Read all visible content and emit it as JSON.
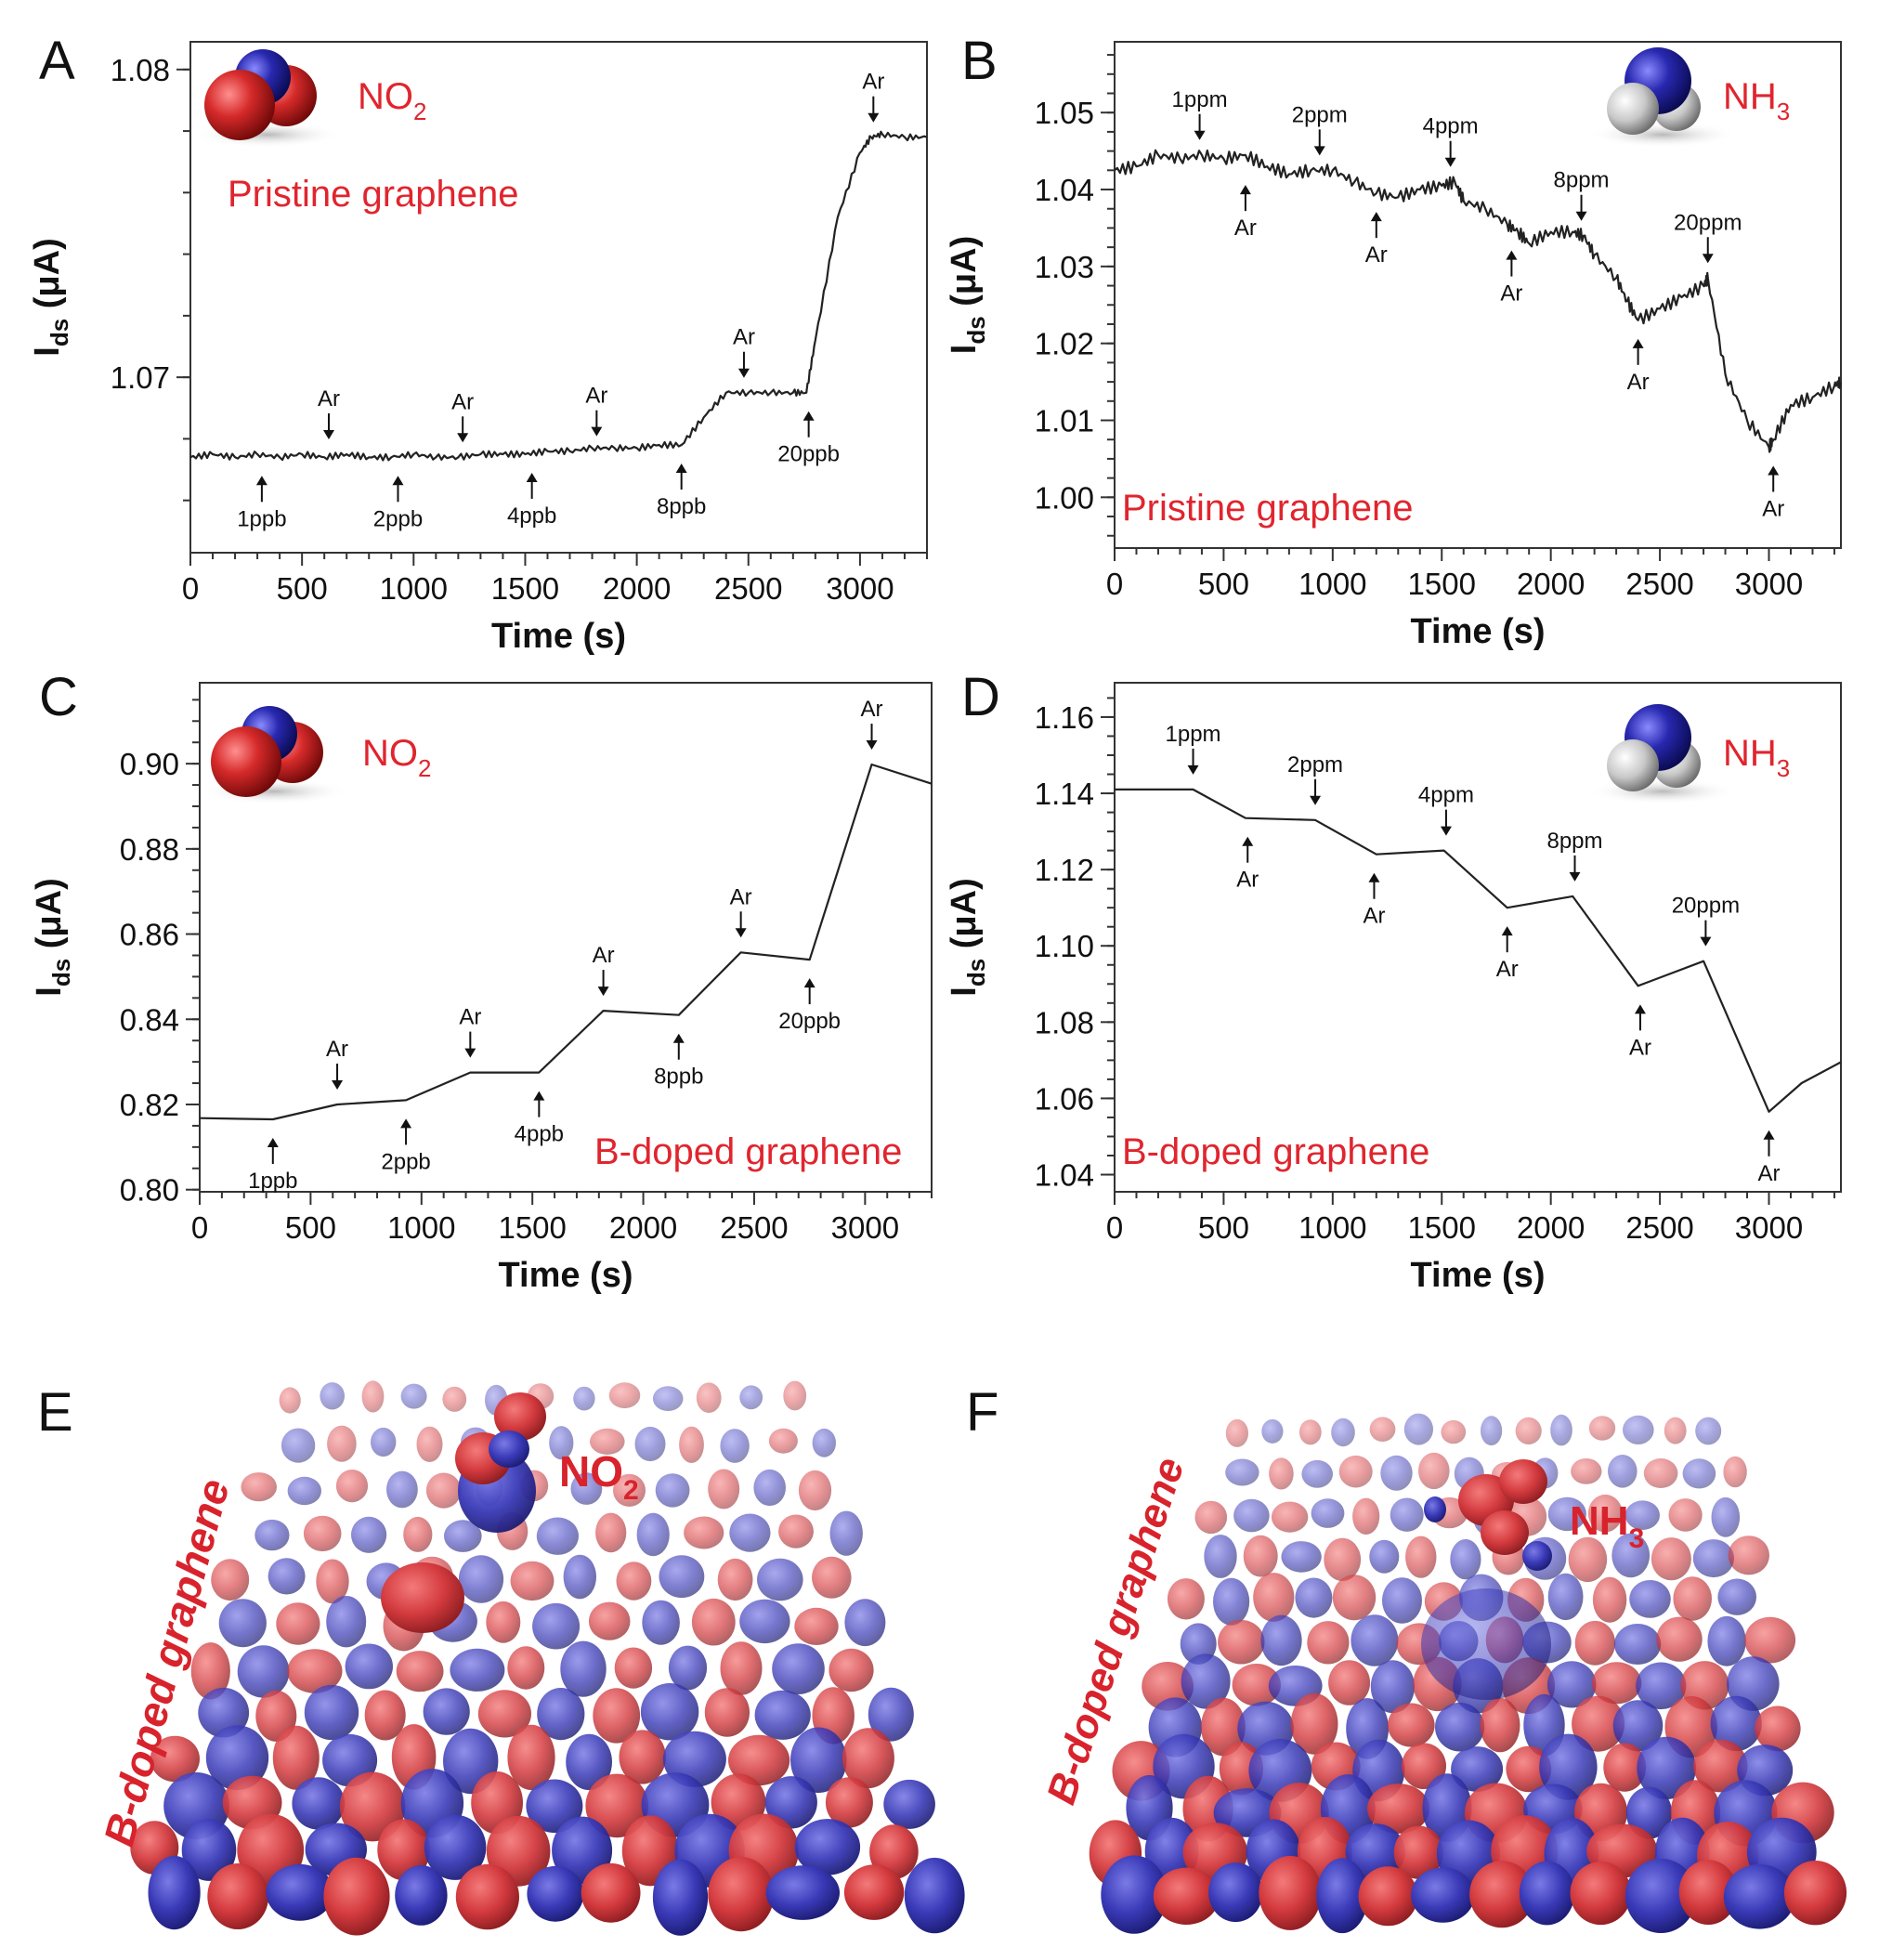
{
  "colors": {
    "trace": "#222222",
    "label_red": "#e0252e",
    "iso_red": "#d9373c",
    "iso_blue": "#3c3cb4"
  },
  "chart_data": [
    {
      "id": "A",
      "type": "line",
      "letter": "A",
      "xlabel": "Time (s)",
      "ylabel_main": "I",
      "ylabel_sub": "ds",
      "ylabel_unit": " (μA)",
      "xlim": [
        0,
        3300
      ],
      "ylim": [
        1.0643,
        1.0809
      ],
      "xticks": [
        0,
        500,
        1000,
        1500,
        2000,
        2500,
        3000
      ],
      "yticks": [
        1.07,
        1.08
      ],
      "ytick_labels": [
        "1.07",
        "1.08"
      ],
      "molecule": "NO2",
      "molecule_label": "NO",
      "molecule_sub": "2",
      "material_label": "Pristine graphene",
      "material_pos": "top-left",
      "series": [
        {
          "x": [
            0,
            100,
            200,
            300,
            400,
            500,
            600,
            700,
            800,
            900,
            1000,
            1100,
            1200,
            1300,
            1400,
            1500,
            1600,
            1700,
            1800,
            1900,
            2000,
            2100,
            2200,
            2300,
            2400,
            2500,
            2600,
            2700,
            2760,
            2800,
            2900,
            3000,
            3050,
            3100,
            3200,
            3300
          ],
          "y": [
            1.0674,
            1.0675,
            1.0674,
            1.0675,
            1.0674,
            1.0675,
            1.0674,
            1.0675,
            1.0674,
            1.0674,
            1.0675,
            1.0674,
            1.0674,
            1.0675,
            1.0675,
            1.0675,
            1.0676,
            1.0676,
            1.0677,
            1.0677,
            1.0677,
            1.0678,
            1.0678,
            1.0687,
            1.0695,
            1.0695,
            1.0695,
            1.0695,
            1.0695,
            1.0712,
            1.0752,
            1.0773,
            1.0778,
            1.0779,
            1.0778,
            1.0778
          ]
        }
      ],
      "annotations": [
        {
          "label": "1ppb",
          "x": 320,
          "y": 1.0674,
          "dir": "up"
        },
        {
          "label": "Ar",
          "x": 620,
          "y": 1.0675,
          "dir": "down"
        },
        {
          "label": "2ppb",
          "x": 930,
          "y": 1.0674,
          "dir": "up"
        },
        {
          "label": "Ar",
          "x": 1220,
          "y": 1.0674,
          "dir": "down"
        },
        {
          "label": "4ppb",
          "x": 1530,
          "y": 1.0675,
          "dir": "up"
        },
        {
          "label": "Ar",
          "x": 1820,
          "y": 1.0676,
          "dir": "down"
        },
        {
          "label": "8ppb",
          "x": 2200,
          "y": 1.0678,
          "dir": "up"
        },
        {
          "label": "Ar",
          "x": 2480,
          "y": 1.0695,
          "dir": "down"
        },
        {
          "label": "20ppb",
          "x": 2770,
          "y": 1.0695,
          "dir": "up"
        },
        {
          "label": "Ar",
          "x": 3060,
          "y": 1.0778,
          "dir": "down"
        }
      ]
    },
    {
      "id": "B",
      "type": "line",
      "letter": "B",
      "xlabel": "Time (s)",
      "ylabel_main": "I",
      "ylabel_sub": "ds",
      "ylabel_unit": " (μA)",
      "xlim": [
        0,
        3330
      ],
      "ylim": [
        0.9934,
        1.0592
      ],
      "xticks": [
        0,
        500,
        1000,
        1500,
        2000,
        2500,
        3000
      ],
      "yticks": [
        1.0,
        1.01,
        1.02,
        1.03,
        1.04,
        1.05
      ],
      "ytick_labels": [
        "1.00",
        "1.01",
        "1.02",
        "1.03",
        "1.04",
        "1.05"
      ],
      "molecule": "NH3",
      "molecule_label": "NH",
      "molecule_sub": "3",
      "material_label": "Pristine graphene",
      "material_pos": "bottom-left",
      "series": [
        {
          "x": [
            0,
            100,
            200,
            300,
            400,
            500,
            600,
            700,
            800,
            900,
            1000,
            1100,
            1200,
            1300,
            1400,
            1500,
            1560,
            1600,
            1700,
            1800,
            1850,
            1900,
            2000,
            2100,
            2150,
            2200,
            2300,
            2350,
            2400,
            2500,
            2600,
            2700,
            2720,
            2800,
            2900,
            3000,
            3020,
            3100,
            3200,
            3300,
            3330
          ],
          "y": [
            1.0425,
            1.043,
            1.0445,
            1.044,
            1.0445,
            1.044,
            1.0445,
            1.043,
            1.042,
            1.0425,
            1.0425,
            1.041,
            1.0395,
            1.039,
            1.04,
            1.0405,
            1.041,
            1.0385,
            1.0375,
            1.0355,
            1.0345,
            1.033,
            1.0345,
            1.0345,
            1.034,
            1.0315,
            1.0285,
            1.0255,
            1.023,
            1.0245,
            1.026,
            1.0275,
            1.0285,
            1.016,
            1.01,
            1.0065,
            1.0075,
            1.012,
            1.013,
            1.0145,
            1.015
          ]
        }
      ],
      "annotations": [
        {
          "label": "1ppm",
          "x": 390,
          "y": 1.0445,
          "dir": "down"
        },
        {
          "label": "Ar",
          "x": 600,
          "y": 1.043,
          "dir": "up"
        },
        {
          "label": "2ppm",
          "x": 940,
          "y": 1.0425,
          "dir": "down"
        },
        {
          "label": "Ar",
          "x": 1200,
          "y": 1.0395,
          "dir": "up"
        },
        {
          "label": "4ppm",
          "x": 1540,
          "y": 1.041,
          "dir": "down"
        },
        {
          "label": "Ar",
          "x": 1820,
          "y": 1.0345,
          "dir": "up"
        },
        {
          "label": "8ppm",
          "x": 2140,
          "y": 1.034,
          "dir": "down"
        },
        {
          "label": "Ar",
          "x": 2400,
          "y": 1.023,
          "dir": "up"
        },
        {
          "label": "20ppm",
          "x": 2720,
          "y": 1.0285,
          "dir": "down"
        },
        {
          "label": "Ar",
          "x": 3020,
          "y": 1.0065,
          "dir": "up"
        }
      ]
    },
    {
      "id": "C",
      "type": "line",
      "letter": "C",
      "xlabel": "Time (s)",
      "ylabel_main": "I",
      "ylabel_sub": "ds",
      "ylabel_unit": " (μA)",
      "xlim": [
        0,
        3300
      ],
      "ylim": [
        0.7995,
        0.919
      ],
      "xticks": [
        0,
        500,
        1000,
        1500,
        2000,
        2500,
        3000
      ],
      "yticks": [
        0.8,
        0.82,
        0.84,
        0.86,
        0.88,
        0.9
      ],
      "ytick_labels": [
        "0.80",
        "0.82",
        "0.84",
        "0.86",
        "0.88",
        "0.90"
      ],
      "molecule": "NO2",
      "molecule_label": "NO",
      "molecule_sub": "2",
      "material_label": "B-doped graphene",
      "material_pos": "bottom-right",
      "series": [
        {
          "x": [
            0,
            330,
            620,
            930,
            1220,
            1530,
            1820,
            2160,
            2440,
            2750,
            3030,
            3300
          ],
          "y": [
            0.8168,
            0.8165,
            0.82,
            0.821,
            0.8275,
            0.8275,
            0.842,
            0.841,
            0.8557,
            0.854,
            0.8998,
            0.8953
          ]
        }
      ],
      "annotations": [
        {
          "label": "1ppb",
          "x": 330,
          "y": 0.8165,
          "dir": "up"
        },
        {
          "label": "Ar",
          "x": 620,
          "y": 0.82,
          "dir": "down"
        },
        {
          "label": "2ppb",
          "x": 930,
          "y": 0.821,
          "dir": "up"
        },
        {
          "label": "Ar",
          "x": 1220,
          "y": 0.8275,
          "dir": "down"
        },
        {
          "label": "4ppb",
          "x": 1530,
          "y": 0.8275,
          "dir": "up"
        },
        {
          "label": "Ar",
          "x": 1820,
          "y": 0.842,
          "dir": "down"
        },
        {
          "label": "8ppb",
          "x": 2160,
          "y": 0.841,
          "dir": "up"
        },
        {
          "label": "Ar",
          "x": 2440,
          "y": 0.8557,
          "dir": "down"
        },
        {
          "label": "20ppb",
          "x": 2750,
          "y": 0.854,
          "dir": "up"
        },
        {
          "label": "Ar",
          "x": 3030,
          "y": 0.8998,
          "dir": "down"
        }
      ]
    },
    {
      "id": "D",
      "type": "line",
      "letter": "D",
      "xlabel": "Time (s)",
      "ylabel_main": "I",
      "ylabel_sub": "ds",
      "ylabel_unit": " (μA)",
      "xlim": [
        0,
        3330
      ],
      "ylim": [
        1.0355,
        1.169
      ],
      "xticks": [
        0,
        500,
        1000,
        1500,
        2000,
        2500,
        3000
      ],
      "yticks": [
        1.04,
        1.06,
        1.08,
        1.1,
        1.12,
        1.14,
        1.16
      ],
      "ytick_labels": [
        "1.04",
        "1.06",
        "1.08",
        "1.10",
        "1.12",
        "1.14",
        "1.16"
      ],
      "molecule": "NH3",
      "molecule_label": "NH",
      "molecule_sub": "3",
      "material_label": "B-doped graphene",
      "material_pos": "bottom-left",
      "series": [
        {
          "x": [
            0,
            200,
            360,
            600,
            920,
            1200,
            1510,
            1800,
            2100,
            2400,
            2700,
            3000,
            3150,
            3330
          ],
          "y": [
            1.141,
            1.141,
            1.141,
            1.1335,
            1.133,
            1.124,
            1.125,
            1.11,
            1.113,
            1.0895,
            1.096,
            1.0565,
            1.064,
            1.0695
          ]
        }
      ],
      "annotations": [
        {
          "label": "1ppm",
          "x": 360,
          "y": 1.141,
          "dir": "down"
        },
        {
          "label": "Ar",
          "x": 610,
          "y": 1.1335,
          "dir": "up"
        },
        {
          "label": "2ppm",
          "x": 920,
          "y": 1.133,
          "dir": "down"
        },
        {
          "label": "Ar",
          "x": 1190,
          "y": 1.124,
          "dir": "up"
        },
        {
          "label": "4ppm",
          "x": 1520,
          "y": 1.125,
          "dir": "down"
        },
        {
          "label": "Ar",
          "x": 1800,
          "y": 1.11,
          "dir": "up"
        },
        {
          "label": "8ppm",
          "x": 2110,
          "y": 1.113,
          "dir": "down"
        },
        {
          "label": "Ar",
          "x": 2410,
          "y": 1.0895,
          "dir": "up"
        },
        {
          "label": "20ppm",
          "x": 2710,
          "y": 1.096,
          "dir": "down"
        },
        {
          "label": "Ar",
          "x": 3000,
          "y": 1.0565,
          "dir": "up"
        }
      ]
    }
  ],
  "panel_e": {
    "letter": "E",
    "side_label": "B-doped graphene",
    "molecule_label": "NO",
    "molecule_sub": "2"
  },
  "panel_f": {
    "letter": "F",
    "side_label": "B-doped graphene",
    "molecule_label": "NH",
    "molecule_sub": "3"
  }
}
